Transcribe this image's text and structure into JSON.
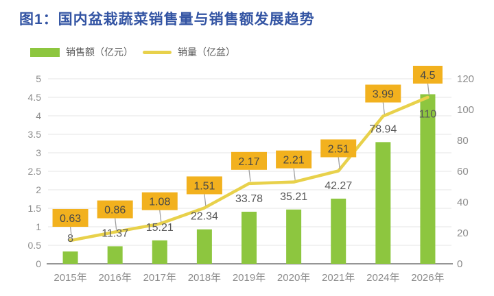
{
  "title": "图1：国内盆栽蔬菜销售量与销售额发展趋势",
  "legend": {
    "bar_label": "销售额（亿元）",
    "line_label": "销量（亿盆）"
  },
  "colors": {
    "title": "#3354A3",
    "bar": "#8DC63F",
    "line": "#E8D14B",
    "callout_box": "#F2B11E",
    "callout_text": "#474747",
    "value_text": "#595959",
    "axis_text": "#8C8C8C",
    "grid": "#E4E4E4",
    "axis_line": "#969696",
    "connector": "#A0A0A0",
    "background": "#FFFFFF"
  },
  "chart_data": {
    "type": "bar",
    "subtype": "bar+line combo",
    "title": "图1：国内盆栽蔬菜销售量与销售额发展趋势",
    "categories": [
      "2015年",
      "2016年",
      "2017年",
      "2018年",
      "2019年",
      "2020年",
      "2021年",
      "2024年",
      "2026年"
    ],
    "series": [
      {
        "name": "销售额（亿元）",
        "type": "bar",
        "axis": "right",
        "values": [
          8,
          11.37,
          15.21,
          22.34,
          33.78,
          35.21,
          42.27,
          78.94,
          110
        ],
        "labels": [
          "8",
          "11.37",
          "15.21",
          "22.34",
          "33.78",
          "35.21",
          "42.27",
          "78.94",
          "110"
        ]
      },
      {
        "name": "销量（亿盆）",
        "type": "line",
        "axis": "left",
        "values": [
          0.63,
          0.86,
          1.08,
          1.51,
          2.17,
          2.21,
          2.51,
          3.99,
          4.5
        ],
        "labels": [
          "0.63",
          "0.86",
          "1.08",
          "1.51",
          "2.17",
          "2.21",
          "2.51",
          "3.99",
          "4.5"
        ]
      }
    ],
    "left_axis": {
      "min": 0,
      "max": 5,
      "step": 0.5,
      "ticks": [
        "5",
        "4.5",
        "4",
        "3.5",
        "3",
        "2.5",
        "2",
        "1.5",
        "1",
        "0.5",
        "0"
      ]
    },
    "right_axis": {
      "min": 0,
      "max": 120,
      "step": 20,
      "ticks": [
        "120",
        "100",
        "80",
        "60",
        "40",
        "20",
        "0"
      ]
    },
    "grid": true,
    "legend_position": "top-left",
    "bar_label_dy": [
      -14,
      -14,
      -14,
      -14,
      -14,
      -14,
      -14,
      -14,
      34
    ],
    "line_labels_in_callouts": true
  }
}
